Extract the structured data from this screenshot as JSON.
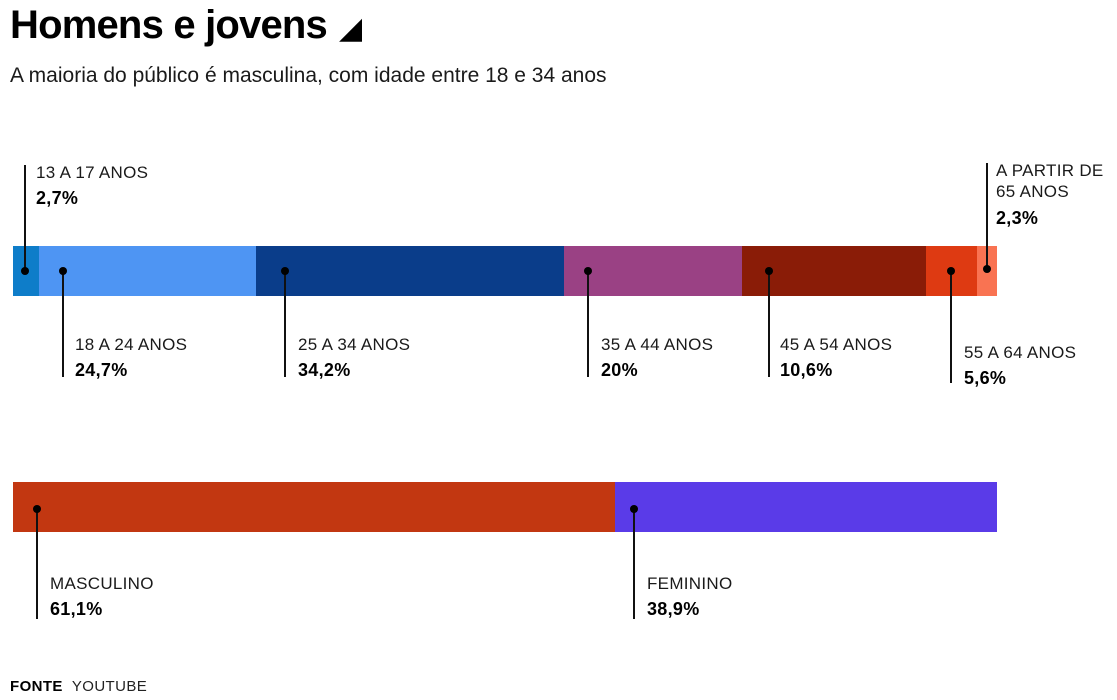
{
  "header": {
    "title": "Homens e jovens",
    "title_icon_glyph": "◢",
    "subtitle": "A maioria do público é masculina, com idade entre 18 e 34 anos"
  },
  "chart_data": [
    {
      "type": "bar",
      "orientation": "horizontal",
      "stacked": true,
      "segments": [
        {
          "label": "13 A 17 ANOS",
          "value": 2.7,
          "value_label": "2,7%",
          "color": "#0e7dc9",
          "width": "2.64%"
        },
        {
          "label": "18 A 24 ANOS",
          "value": 24.7,
          "value_label": "24,7%",
          "color": "#4e95f3",
          "width": "22.05%"
        },
        {
          "label": "25 A 34 ANOS",
          "value": 34.2,
          "value_label": "34,2%",
          "color": "#0a3d8a",
          "width": "31.30%"
        },
        {
          "label": "35 A 44 ANOS",
          "value": 20,
          "value_label": "20%",
          "color": "#9a4184",
          "width": "18.09%"
        },
        {
          "label": "45 A 54 ANOS",
          "value": 10.6,
          "value_label": "10,6%",
          "color": "#8a1c07",
          "width": "18.70%"
        },
        {
          "label": "55 A 64 ANOS",
          "value": 5.6,
          "value_label": "5,6%",
          "color": "#de3a12",
          "width": "5.18%"
        },
        {
          "label": "A PARTIR DE 65 ANOS",
          "value": 2.3,
          "value_label": "2,3%",
          "color": "#f97352",
          "width": "2.03%"
        }
      ]
    },
    {
      "type": "bar",
      "orientation": "horizontal",
      "stacked": true,
      "segments": [
        {
          "label": "MASCULINO",
          "value": 61.1,
          "value_label": "61,1%",
          "color": "#c23711",
          "width": "61.15%"
        },
        {
          "label": "FEMININO",
          "value": 38.9,
          "value_label": "38,9%",
          "color": "#5a3be8",
          "width": "38.85%"
        }
      ]
    }
  ],
  "footer": {
    "source_label": "FONTE",
    "source_value": "YOUTUBE"
  }
}
